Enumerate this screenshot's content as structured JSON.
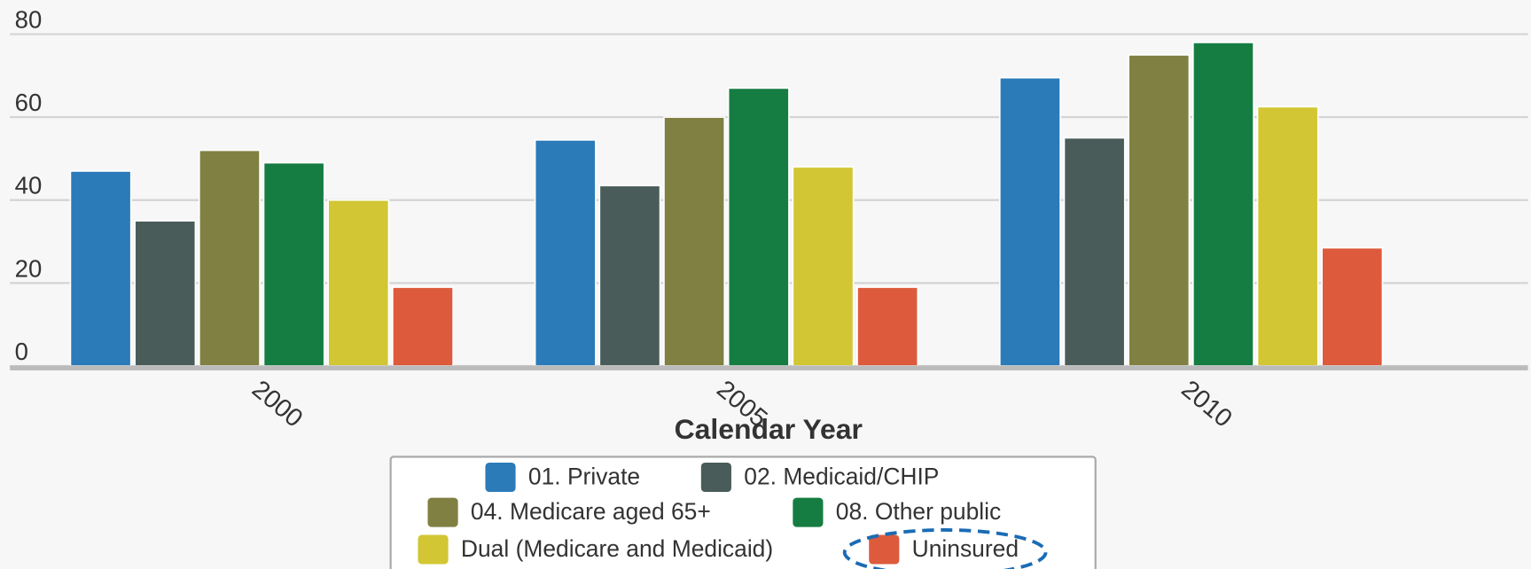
{
  "chart_data": {
    "type": "bar",
    "x_label": "Calendar Year",
    "categories": [
      "2000",
      "2005",
      "2010"
    ],
    "series": [
      {
        "name": "01. Private",
        "color": "#2b7bb9",
        "values": [
          47,
          54.5,
          69.5
        ]
      },
      {
        "name": "02. Medicaid/CHIP",
        "color": "#495c59",
        "values": [
          35,
          43.5,
          55
        ]
      },
      {
        "name": "04. Medicare aged 65+",
        "color": "#808042",
        "values": [
          52,
          60,
          75
        ]
      },
      {
        "name": "08. Other public",
        "color": "#167d42",
        "values": [
          49,
          67,
          78
        ]
      },
      {
        "name": "Dual (Medicare and Medicaid)",
        "color": "#d2c634",
        "values": [
          40,
          48,
          62.5
        ]
      },
      {
        "name": "Uninsured",
        "color": "#dd5b3c",
        "values": [
          19,
          19,
          28.5
        ]
      }
    ],
    "ylim": [
      0,
      80
    ],
    "yticks": [
      0,
      20,
      40,
      60,
      80
    ],
    "grid": true,
    "legend": "bottom"
  }
}
